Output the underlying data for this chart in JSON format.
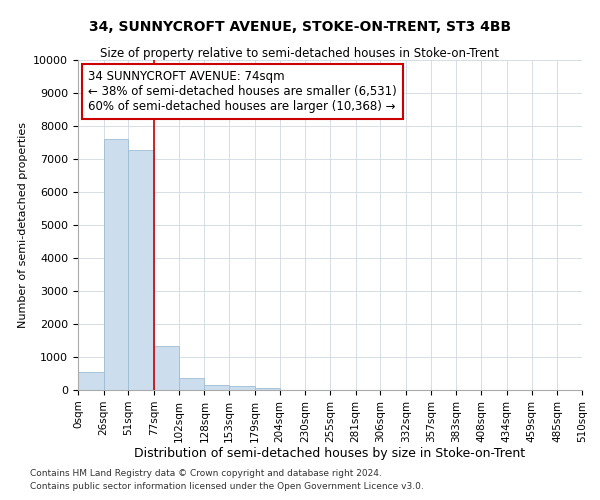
{
  "title": "34, SUNNYCROFT AVENUE, STOKE-ON-TRENT, ST3 4BB",
  "subtitle": "Size of property relative to semi-detached houses in Stoke-on-Trent",
  "xlabel": "Distribution of semi-detached houses by size in Stoke-on-Trent",
  "ylabel": "Number of semi-detached properties",
  "footnote1": "Contains HM Land Registry data © Crown copyright and database right 2024.",
  "footnote2": "Contains public sector information licensed under the Open Government Licence v3.0.",
  "bin_labels": [
    "0sqm",
    "26sqm",
    "51sqm",
    "77sqm",
    "102sqm",
    "128sqm",
    "153sqm",
    "179sqm",
    "204sqm",
    "230sqm",
    "255sqm",
    "281sqm",
    "306sqm",
    "332sqm",
    "357sqm",
    "383sqm",
    "408sqm",
    "434sqm",
    "459sqm",
    "485sqm",
    "510sqm"
  ],
  "bar_values": [
    560,
    7600,
    7280,
    1340,
    350,
    160,
    120,
    60,
    0,
    0,
    0,
    0,
    0,
    0,
    0,
    0,
    0,
    0,
    0,
    0
  ],
  "bar_color": "#ccdded",
  "bar_edge_color": "#9fbdd4",
  "property_line_x": 77,
  "property_line_color": "#cc0000",
  "annotation_text": "34 SUNNYCROFT AVENUE: 74sqm\n← 38% of semi-detached houses are smaller (6,531)\n60% of semi-detached houses are larger (10,368) →",
  "annotation_box_color": "#ffffff",
  "annotation_box_edge": "#cc0000",
  "ylim": [
    0,
    10000
  ],
  "yticks": [
    0,
    1000,
    2000,
    3000,
    4000,
    5000,
    6000,
    7000,
    8000,
    9000,
    10000
  ],
  "background_color": "#ffffff",
  "grid_color": "#d0d8e0",
  "bin_edges": [
    0,
    26,
    51,
    77,
    102,
    128,
    153,
    179,
    204,
    230,
    255,
    281,
    306,
    332,
    357,
    383,
    408,
    434,
    459,
    485,
    510
  ]
}
